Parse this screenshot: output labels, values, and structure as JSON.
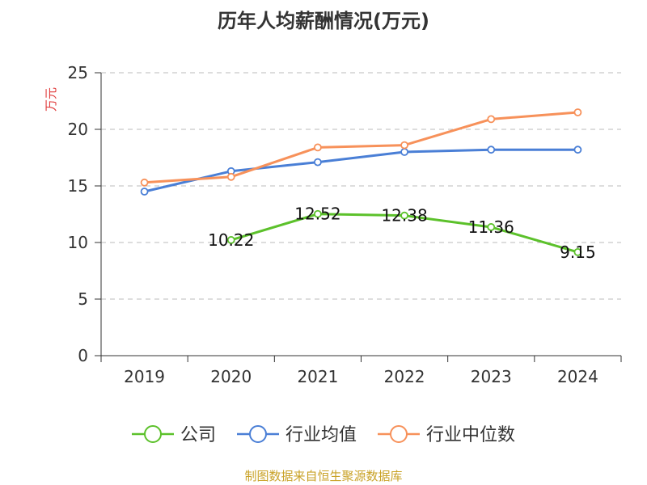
{
  "chart_data": {
    "type": "line",
    "title": "历年人均薪酬情况(万元)",
    "ylabel": "万元",
    "xlabel": "",
    "categories": [
      "2019",
      "2020",
      "2021",
      "2022",
      "2023",
      "2024"
    ],
    "ylim": [
      0,
      25
    ],
    "yticks": [
      0,
      5,
      10,
      15,
      20,
      25
    ],
    "grid": true,
    "legend_position": "bottom",
    "series": [
      {
        "name": "公司",
        "color": "#5cc12b",
        "values": [
          null,
          10.22,
          12.52,
          12.38,
          11.36,
          9.15
        ],
        "labels": [
          "",
          "10.22",
          "12.52",
          "12.38",
          "11.36",
          "9.15"
        ]
      },
      {
        "name": "行业均值",
        "color": "#4a7fd6",
        "values": [
          14.5,
          16.3,
          17.1,
          18.0,
          18.2,
          18.2
        ]
      },
      {
        "name": "行业中位数",
        "color": "#f7915a",
        "values": [
          15.3,
          15.8,
          18.4,
          18.6,
          20.9,
          21.5
        ]
      }
    ]
  },
  "footer": {
    "source": "制图数据来自恒生聚源数据库"
  }
}
